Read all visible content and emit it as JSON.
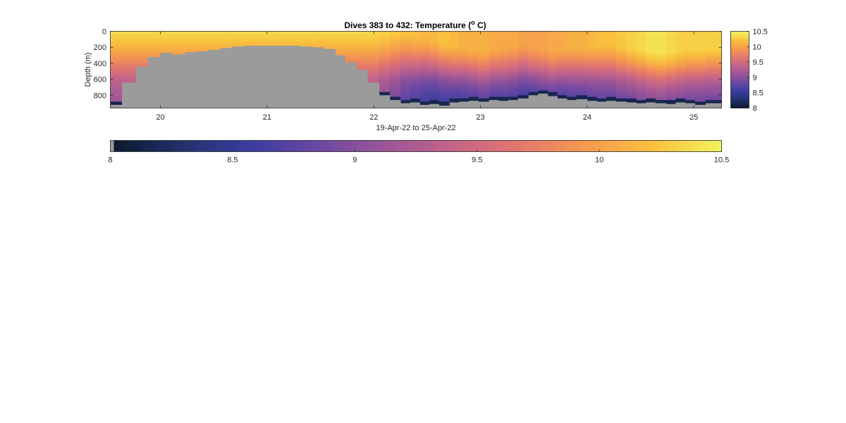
{
  "chart_data": {
    "type": "heatmap",
    "title": "Dives 383 to 432: Temperature (",
    "title_superscript": "o",
    "title_suffix": " C)",
    "xlabel": "19-Apr-22 to 25-Apr-22",
    "ylabel": "Depth (m)",
    "xlim": [
      19.53,
      25.26
    ],
    "ylim": [
      0,
      960
    ],
    "y_reversed": true,
    "x_ticks": [
      20,
      21,
      22,
      23,
      24,
      25
    ],
    "x_tick_labels": [
      "20",
      "21",
      "22",
      "23",
      "24",
      "25"
    ],
    "y_ticks": [
      0,
      200,
      400,
      600,
      800
    ],
    "y_tick_labels": [
      "0",
      "200",
      "400",
      "600",
      "800"
    ],
    "colorbar": {
      "range": [
        8,
        10.5
      ],
      "side_ticks": [
        8,
        8.5,
        9,
        9.5,
        10,
        10.5
      ],
      "side_tick_labels": [
        "8",
        "8.5",
        "9",
        "9.5",
        "10",
        "10.5"
      ],
      "bottom_ticks": [
        8,
        8.5,
        9,
        9.5,
        10,
        10.5
      ],
      "bottom_tick_labels": [
        "8",
        "8.5",
        "9",
        "9.5",
        "10",
        "10.5"
      ]
    },
    "colormap": [
      "#0b1a2e",
      "#22306b",
      "#3a3da0",
      "#6a47a3",
      "#9a5597",
      "#c3648a",
      "#e3776e",
      "#f59a4e",
      "#f9c23d",
      "#f1f35e"
    ],
    "no_data_color": "#9b9b9b",
    "x_edges": [
      19.53,
      19.64,
      19.77,
      19.88,
      20.0,
      20.11,
      20.23,
      20.34,
      20.45,
      20.56,
      20.67,
      20.78,
      20.88,
      20.99,
      21.09,
      21.2,
      21.31,
      21.43,
      21.53,
      21.64,
      21.73,
      21.84,
      21.94,
      22.05,
      22.15,
      22.25,
      22.34,
      22.43,
      22.52,
      22.61,
      22.71,
      22.8,
      22.89,
      22.98,
      23.08,
      23.17,
      23.26,
      23.35,
      23.45,
      23.54,
      23.63,
      23.72,
      23.81,
      23.9,
      24.0,
      24.09,
      24.18,
      24.27,
      24.37,
      24.46,
      24.55,
      24.64,
      24.74,
      24.83,
      24.92,
      25.01,
      25.11,
      25.26
    ],
    "bottom_depth": [
      920,
      640,
      440,
      320,
      270,
      290,
      260,
      250,
      230,
      210,
      190,
      180,
      180,
      180,
      180,
      180,
      190,
      200,
      220,
      300,
      390,
      480,
      640,
      800,
      860,
      900,
      890,
      920,
      910,
      930,
      890,
      880,
      870,
      880,
      860,
      870,
      860,
      840,
      800,
      780,
      810,
      840,
      860,
      850,
      870,
      880,
      870,
      880,
      890,
      900,
      890,
      900,
      910,
      890,
      900,
      920,
      900
    ],
    "surface_temp": [
      10.35,
      10.35,
      10.35,
      10.35,
      10.35,
      10.35,
      10.35,
      10.35,
      10.35,
      10.35,
      10.35,
      10.35,
      10.35,
      10.35,
      10.35,
      10.35,
      10.35,
      10.35,
      10.35,
      10.35,
      10.35,
      10.35,
      10.35,
      10.3,
      10.25,
      10.2,
      10.2,
      10.15,
      10.15,
      10.2,
      10.15,
      10.1,
      10.1,
      10.1,
      10.05,
      10.05,
      10.05,
      10.0,
      10.0,
      10.0,
      10.05,
      10.05,
      10.1,
      10.1,
      10.15,
      10.2,
      10.2,
      10.25,
      10.3,
      10.35,
      10.4,
      10.4,
      10.35,
      10.3,
      10.3,
      10.3,
      10.3
    ],
    "cline_depth": [
      260,
      260,
      260,
      260,
      260,
      260,
      260,
      260,
      260,
      260,
      260,
      260,
      260,
      260,
      260,
      260,
      260,
      260,
      260,
      260,
      260,
      260,
      260,
      260,
      270,
      270,
      300,
      320,
      350,
      380,
      420,
      440,
      460,
      480,
      460,
      440,
      420,
      400,
      440,
      460,
      480,
      460,
      440,
      440,
      420,
      400,
      400,
      420,
      440,
      460,
      480,
      500,
      500,
      480,
      460,
      460,
      440
    ],
    "cline_scale": [
      250,
      250,
      250,
      250,
      250,
      250,
      250,
      250,
      250,
      250,
      250,
      250,
      250,
      250,
      250,
      250,
      250,
      250,
      250,
      250,
      250,
      250,
      250,
      240,
      240,
      240,
      240,
      240,
      230,
      230,
      230,
      230,
      230,
      230,
      230,
      230,
      230,
      230,
      230,
      230,
      230,
      230,
      230,
      230,
      230,
      230,
      230,
      230,
      230,
      230,
      230,
      230,
      230,
      230,
      230,
      230,
      230
    ],
    "deep_drop": [
      1.35,
      1.35,
      1.35,
      1.35,
      1.35,
      1.35,
      1.35,
      1.35,
      1.35,
      1.35,
      1.35,
      1.35,
      1.35,
      1.35,
      1.35,
      1.35,
      1.35,
      1.35,
      1.35,
      1.35,
      1.35,
      1.35,
      1.35,
      1.4,
      1.5,
      1.6,
      1.7,
      1.75,
      1.8,
      1.85,
      1.85,
      1.8,
      1.8,
      1.75,
      1.75,
      1.7,
      1.7,
      1.7,
      1.75,
      1.75,
      1.8,
      1.8,
      1.75,
      1.75,
      1.7,
      1.7,
      1.7,
      1.7,
      1.75,
      1.75,
      1.8,
      1.8,
      1.8,
      1.75,
      1.75,
      1.75,
      1.75
    ]
  }
}
